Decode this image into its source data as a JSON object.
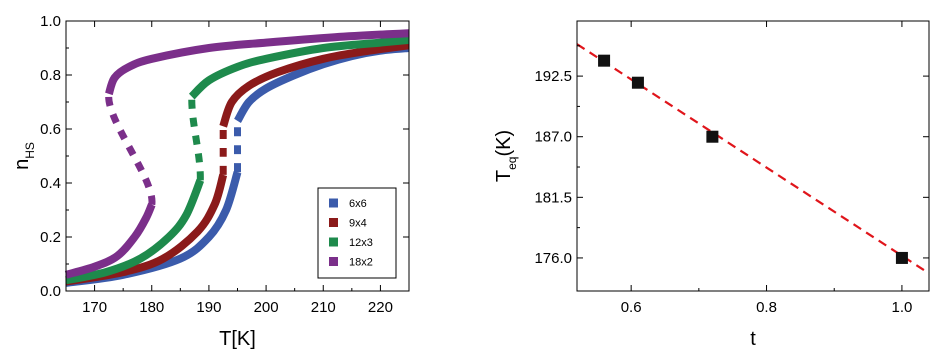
{
  "chart_data": [
    {
      "type": "line",
      "xlabel": "T[K]",
      "ylabel": "n",
      "ylabel_sub": "HS",
      "xlim": [
        165,
        225
      ],
      "ylim": [
        0.0,
        1.0
      ],
      "xticks": [
        170,
        180,
        190,
        200,
        210,
        220
      ],
      "yticks": [
        "0.0",
        "0.2",
        "0.4",
        "0.6",
        "0.8",
        "1.0"
      ],
      "grid": false,
      "legend_position": "bottom-right",
      "marker": "square",
      "series": [
        {
          "name": "6x6",
          "color": "#3b5bab",
          "lower": [
            [
              165,
              0.03
            ],
            [
              175,
              0.06
            ],
            [
              185,
              0.12
            ],
            [
              190,
              0.2
            ],
            [
              193,
              0.3
            ],
            [
              195,
              0.44
            ]
          ],
          "upper": [
            [
              195,
              0.63
            ],
            [
              197,
              0.7
            ],
            [
              200,
              0.75
            ],
            [
              205,
              0.8
            ],
            [
              210,
              0.84
            ],
            [
              215,
              0.87
            ],
            [
              220,
              0.89
            ],
            [
              225,
              0.9
            ]
          ]
        },
        {
          "name": "9x4",
          "color": "#8b1a1a",
          "lower": [
            [
              165,
              0.035
            ],
            [
              175,
              0.07
            ],
            [
              182,
              0.12
            ],
            [
              188,
              0.22
            ],
            [
              191,
              0.32
            ],
            [
              192.5,
              0.43
            ]
          ],
          "upper": [
            [
              192.5,
              0.61
            ],
            [
              194,
              0.7
            ],
            [
              197,
              0.76
            ],
            [
              202,
              0.81
            ],
            [
              210,
              0.86
            ],
            [
              218,
              0.89
            ],
            [
              225,
              0.91
            ]
          ]
        },
        {
          "name": "12x3",
          "color": "#1e8a4c",
          "lower": [
            [
              165,
              0.04
            ],
            [
              172,
              0.07
            ],
            [
              178,
              0.12
            ],
            [
              183,
              0.2
            ],
            [
              186,
              0.28
            ],
            [
              188.5,
              0.41
            ]
          ],
          "upper": [
            [
              187,
              0.72
            ],
            [
              190,
              0.78
            ],
            [
              195,
              0.83
            ],
            [
              200,
              0.86
            ],
            [
              210,
              0.9
            ],
            [
              220,
              0.92
            ],
            [
              225,
              0.93
            ]
          ]
        },
        {
          "name": "18x2",
          "color": "#7b2f8a",
          "lower": [
            [
              165,
              0.06
            ],
            [
              170,
              0.09
            ],
            [
              174,
              0.13
            ],
            [
              177,
              0.2
            ],
            [
              179,
              0.27
            ],
            [
              180,
              0.32
            ]
          ],
          "upper": [
            [
              172.5,
              0.73
            ],
            [
              173.5,
              0.79
            ],
            [
              176,
              0.83
            ],
            [
              180,
              0.86
            ],
            [
              190,
              0.9
            ],
            [
              200,
              0.92
            ],
            [
              212,
              0.94
            ],
            [
              225,
              0.955
            ]
          ]
        }
      ]
    },
    {
      "type": "scatter",
      "xlabel": "t",
      "ylabel": "T",
      "ylabel_sub": "eq",
      "ylabel_suffix": "(K)",
      "xlim": [
        0.52,
        1.04
      ],
      "ylim": [
        173.0,
        197.5
      ],
      "xticks": [
        "0.6",
        "0.8",
        "1.0"
      ],
      "yticks": [
        "176.0",
        "181.5",
        "187.0",
        "192.5"
      ],
      "grid": false,
      "marker": "square",
      "marker_color": "#111111",
      "fit_line_color": "#e0151b",
      "points": [
        {
          "x": 0.56,
          "y": 193.9
        },
        {
          "x": 0.61,
          "y": 191.9
        },
        {
          "x": 0.72,
          "y": 187.0
        },
        {
          "x": 1.0,
          "y": 176.0
        }
      ],
      "fit_line": {
        "x1": 0.52,
        "y1": 195.4,
        "x2": 1.04,
        "y2": 174.6
      }
    }
  ]
}
